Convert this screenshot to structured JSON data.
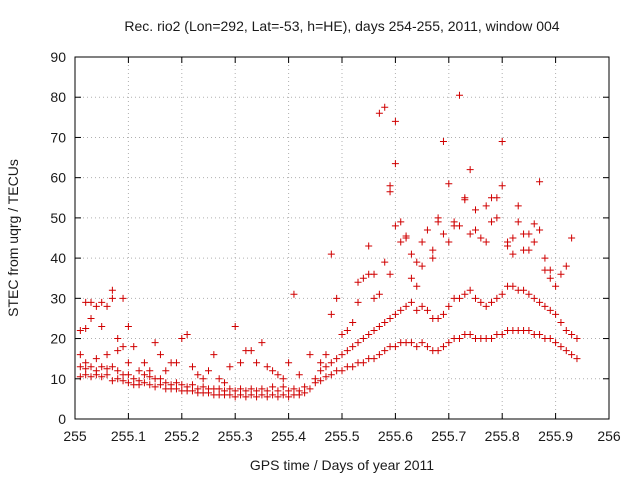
{
  "chart_data": {
    "type": "scatter",
    "title": "Rec. rio2 (Lon=292, Lat=-53, h=HE), days 254-255, 2011, window 004",
    "xlabel": "GPS time / Days of year 2011",
    "ylabel": "STEC from uqrg / TECUs",
    "xlim": [
      255,
      256
    ],
    "ylim": [
      0,
      90
    ],
    "xticks": [
      "255",
      "255.1",
      "255.2",
      "255.3",
      "255.4",
      "255.5",
      "255.6",
      "255.7",
      "255.8",
      "255.9",
      "256"
    ],
    "yticks": [
      "0",
      "10",
      "20",
      "30",
      "40",
      "50",
      "60",
      "70",
      "80",
      "90"
    ],
    "grid": true,
    "marker": "+",
    "color": "#d00000",
    "series": [
      {
        "x": [
          255.01,
          255.01,
          255.01,
          255.02,
          255.02,
          255.02,
          255.03,
          255.03,
          255.04,
          255.04,
          255.04,
          255.05,
          255.05,
          255.06,
          255.06,
          255.06,
          255.07,
          255.07,
          255.08,
          255.08,
          255.08,
          255.09,
          255.09,
          255.1,
          255.1,
          255.1,
          255.11,
          255.11,
          255.12,
          255.12,
          255.13,
          255.13,
          255.14,
          255.14,
          255.15,
          255.15,
          255.16,
          255.16,
          255.17,
          255.17,
          255.18,
          255.18,
          255.19,
          255.19,
          255.2,
          255.2,
          255.21,
          255.21,
          255.22,
          255.22,
          255.23,
          255.23,
          255.24,
          255.24,
          255.25,
          255.25,
          255.26,
          255.26,
          255.27,
          255.27,
          255.28,
          255.28,
          255.29,
          255.29,
          255.3,
          255.3,
          255.31,
          255.31,
          255.32,
          255.32,
          255.33,
          255.33,
          255.34,
          255.34,
          255.35,
          255.35,
          255.36,
          255.36,
          255.37,
          255.37,
          255.38,
          255.38,
          255.39,
          255.39,
          255.4,
          255.4,
          255.41,
          255.41,
          255.42,
          255.42,
          255.43,
          255.43,
          255.44,
          255.45,
          255.45,
          255.46,
          255.46,
          255.47,
          255.47,
          255.48,
          255.48,
          255.49,
          255.49,
          255.5,
          255.5,
          255.51,
          255.51,
          255.52,
          255.52,
          255.53,
          255.53,
          255.54,
          255.54,
          255.55,
          255.55,
          255.56,
          255.56,
          255.57,
          255.57,
          255.58,
          255.58,
          255.59,
          255.59,
          255.6,
          255.6,
          255.61,
          255.61,
          255.62,
          255.62,
          255.63,
          255.63,
          255.64,
          255.64,
          255.65,
          255.65,
          255.66,
          255.66,
          255.67,
          255.67,
          255.68,
          255.68,
          255.69,
          255.69,
          255.7,
          255.7,
          255.71,
          255.71,
          255.72,
          255.72,
          255.73,
          255.73,
          255.74,
          255.74,
          255.75,
          255.75,
          255.76,
          255.76,
          255.77,
          255.77,
          255.78,
          255.78,
          255.79,
          255.79,
          255.8,
          255.8,
          255.81,
          255.81,
          255.82,
          255.82,
          255.83,
          255.83,
          255.84,
          255.84,
          255.85,
          255.85,
          255.86,
          255.86,
          255.87,
          255.87,
          255.88,
          255.88,
          255.89,
          255.89,
          255.9,
          255.9,
          255.91,
          255.91,
          255.92,
          255.92,
          255.93,
          255.93,
          255.94,
          255.94
        ],
        "y": [
          10.5,
          13,
          16,
          11,
          12.5,
          14,
          10.5,
          13,
          11,
          12,
          15,
          10.5,
          13,
          11,
          12.5,
          16,
          9.5,
          13,
          10,
          12,
          17,
          9.5,
          11,
          9,
          11,
          14,
          8.5,
          10,
          8.5,
          9.5,
          9,
          11,
          8.5,
          10.5,
          8,
          10,
          8.5,
          10,
          7.5,
          9,
          7.5,
          8.5,
          7.5,
          9,
          7,
          8.5,
          7,
          8,
          7,
          8.5,
          6.5,
          7.5,
          6.5,
          8,
          6.5,
          7.5,
          6,
          7.5,
          6,
          7.5,
          6,
          7,
          6,
          7.5,
          5.5,
          7,
          6,
          7.5,
          5.5,
          7,
          6,
          7.5,
          5.5,
          7,
          6,
          7.5,
          5.5,
          7,
          6,
          8,
          5.5,
          7,
          6,
          8,
          5.5,
          7,
          6,
          7.5,
          6,
          7,
          6.5,
          8,
          7.5,
          9,
          10,
          9.5,
          12,
          10.5,
          13,
          11,
          14,
          12,
          15,
          12,
          16,
          13,
          17,
          13,
          18,
          14,
          19,
          14,
          20,
          15,
          21,
          15,
          22,
          16,
          23,
          17,
          24,
          18,
          25,
          18,
          26,
          19,
          27,
          19,
          28,
          19,
          29,
          18,
          27,
          19,
          28,
          18,
          27,
          17,
          25,
          17,
          25,
          18,
          26,
          19,
          28,
          20,
          30,
          20,
          30,
          21,
          31,
          21,
          32,
          20,
          30,
          20,
          29,
          20,
          28,
          20,
          29,
          21,
          30,
          21,
          31,
          22,
          33,
          22,
          33,
          22,
          32,
          22,
          32,
          22,
          31,
          21,
          30,
          21,
          29,
          20,
          28,
          20,
          27,
          19,
          26,
          18,
          24,
          17,
          22,
          16,
          21,
          15,
          20
        ]
      },
      {
        "x": [
          255.01,
          255.02,
          255.03,
          255.04,
          255.05,
          255.06,
          255.07,
          255.08,
          255.09,
          255.1,
          255.11,
          255.12,
          255.13,
          255.14,
          255.15,
          255.16,
          255.17,
          255.18,
          255.19,
          255.2,
          255.21,
          255.22,
          255.23,
          255.24,
          255.25,
          255.26,
          255.27,
          255.28,
          255.29,
          255.3,
          255.31,
          255.32,
          255.33,
          255.34,
          255.35,
          255.36,
          255.37,
          255.38,
          255.39,
          255.4,
          255.41,
          255.42,
          255.44,
          255.46,
          255.47,
          255.48,
          255.49,
          255.5,
          255.51,
          255.52,
          255.53,
          255.54,
          255.55,
          255.56,
          255.57,
          255.58,
          255.59,
          255.6,
          255.61,
          255.62,
          255.63,
          255.64,
          255.65,
          255.66,
          255.67,
          255.68,
          255.69,
          255.7,
          255.71,
          255.72,
          255.73,
          255.74,
          255.75,
          255.76,
          255.77,
          255.78,
          255.79,
          255.8,
          255.81,
          255.82,
          255.83,
          255.84,
          255.85,
          255.86,
          255.87,
          255.88,
          255.89,
          255.9,
          255.91,
          255.92,
          255.93
        ],
        "y": [
          22,
          22.5,
          25,
          28,
          23,
          28,
          30,
          20,
          18,
          23,
          18,
          12,
          14,
          12,
          19,
          16,
          12,
          14,
          14,
          20,
          21,
          13,
          11,
          10,
          12,
          16,
          10,
          9,
          13,
          23,
          14,
          17,
          17,
          14,
          19,
          13,
          12,
          11,
          10,
          14,
          31,
          11,
          16,
          14,
          16,
          26,
          30,
          21,
          22,
          24,
          29,
          35,
          36,
          30,
          31,
          39,
          36,
          48,
          44,
          45,
          35,
          33,
          38,
          47,
          42,
          49,
          46,
          44,
          48,
          48,
          55,
          46,
          52,
          45,
          44,
          55,
          50,
          58,
          44,
          45,
          49,
          46,
          42,
          44,
          47,
          40,
          37,
          33,
          36,
          38,
          45
        ]
      },
      {
        "x": [
          255.02,
          255.03,
          255.05,
          255.07,
          255.09,
          255.48,
          255.53,
          255.55,
          255.56,
          255.57,
          255.58,
          255.59,
          255.59,
          255.6,
          255.6,
          255.61,
          255.62,
          255.63,
          255.64,
          255.65,
          255.67,
          255.68,
          255.69,
          255.7,
          255.71,
          255.72,
          255.73,
          255.74,
          255.75,
          255.77,
          255.78,
          255.79,
          255.8,
          255.81,
          255.82,
          255.83,
          255.84,
          255.85,
          255.86,
          255.87,
          255.88,
          255.89
        ],
        "y": [
          29,
          29,
          29,
          32,
          30,
          41,
          34,
          43,
          36,
          76,
          77.5,
          58,
          56.5,
          74,
          63.5,
          49,
          45.5,
          41,
          39,
          44,
          40,
          50,
          69,
          58.5,
          49,
          80.5,
          54.5,
          62,
          47,
          53,
          49,
          55,
          69,
          43,
          41,
          53,
          42,
          46,
          48.5,
          59,
          37,
          35
        ]
      }
    ]
  }
}
